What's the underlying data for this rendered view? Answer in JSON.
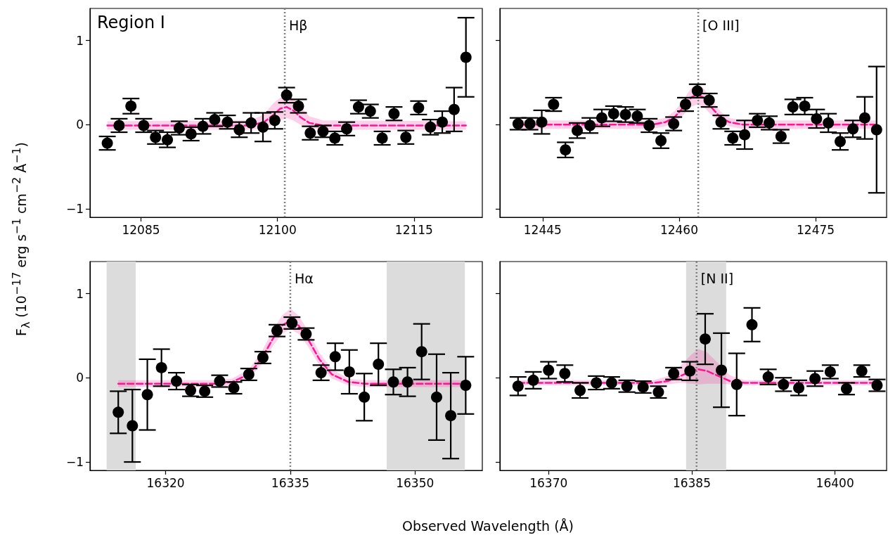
{
  "chart_data": [
    {
      "type": "scatter",
      "ylabel": "F$_{λ}$ (10$^{−17}$ erg s$^{−1}$ cm$^{−2}$ Å$^{−1}$)",
      "annotations": [
        "Region I"
      ],
      "xlim": [
        12079.4,
        12122.5
      ],
      "xticks": [
        12085,
        12100,
        12115
      ],
      "ylim": [
        -1.1,
        1.38
      ],
      "yticks": [
        {
          "value": -1,
          "label": "−1"
        },
        0,
        1
      ],
      "ref_lines": [
        {
          "axis": "x",
          "value": 12100.8,
          "label": "Hβ",
          "color": "#808080",
          "line_style": "dotted"
        }
      ],
      "series": [
        {
          "color": "#000000",
          "marker": "circle",
          "x": [
            12081.3,
            12082.6,
            12083.9,
            12085.3,
            12086.6,
            12087.9,
            12089.2,
            12090.5,
            12091.8,
            12093.1,
            12094.5,
            12095.8,
            12097.1,
            12098.4,
            12099.7,
            12101.0,
            12102.3,
            12103.6,
            12105.0,
            12106.3,
            12107.6,
            12108.9,
            12110.2,
            12111.5,
            12112.8,
            12114.1,
            12115.5,
            12116.8,
            12118.1,
            12119.4,
            12120.7
          ],
          "values": [
            -0.22,
            -0.01,
            0.22,
            -0.01,
            -0.15,
            -0.18,
            -0.04,
            -0.11,
            -0.02,
            0.06,
            0.03,
            -0.06,
            0.02,
            -0.03,
            0.05,
            0.35,
            0.22,
            -0.1,
            -0.08,
            -0.16,
            -0.05,
            0.21,
            0.16,
            -0.16,
            0.13,
            -0.15,
            0.2,
            -0.03,
            0.03,
            0.18,
            0.8
          ],
          "errors": [
            0.08,
            0.08,
            0.09,
            0.08,
            0.08,
            0.09,
            0.08,
            0.08,
            0.09,
            0.08,
            0.08,
            0.09,
            0.12,
            0.17,
            0.1,
            0.09,
            0.08,
            0.08,
            0.07,
            0.08,
            0.08,
            0.08,
            0.08,
            0.08,
            0.08,
            0.08,
            0.08,
            0.09,
            0.13,
            0.26,
            0.47
          ]
        },
        {
          "type": "line",
          "color": "#ff1493",
          "marker": "none",
          "line_style": "dashed",
          "x": [
            12081.3,
            12097,
            12098.5,
            12099.5,
            12100.3,
            12101,
            12101.7,
            12102.5,
            12103.5,
            12105,
            12120.7
          ],
          "values": [
            -0.01,
            -0.01,
            0.03,
            0.11,
            0.19,
            0.21,
            0.17,
            0.09,
            0.02,
            -0.01,
            -0.01
          ],
          "lower": [
            -0.06,
            -0.06,
            -0.04,
            0.0,
            0.05,
            0.08,
            0.05,
            0.0,
            -0.04,
            -0.06,
            -0.06
          ],
          "upper": [
            0.04,
            0.05,
            0.12,
            0.25,
            0.32,
            0.33,
            0.31,
            0.22,
            0.1,
            0.05,
            0.04
          ]
        }
      ]
    },
    {
      "type": "scatter",
      "tick_labels": "x",
      "xlim": [
        12440.3,
        12482.8
      ],
      "xticks": [
        12445,
        12460,
        12475
      ],
      "ylim": [
        -1.1,
        1.38
      ],
      "yticks": [
        -1,
        0,
        1
      ],
      "ref_lines": [
        {
          "axis": "x",
          "value": 12462.1,
          "label": "[O III]",
          "color": "#808080",
          "line_style": "dotted"
        }
      ],
      "series": [
        {
          "color": "#000000",
          "marker": "circle",
          "x": [
            12442.3,
            12443.6,
            12444.9,
            12446.2,
            12447.5,
            12448.8,
            12450.2,
            12451.5,
            12452.8,
            12454.1,
            12455.4,
            12456.7,
            12458.0,
            12459.4,
            12460.7,
            12462.0,
            12463.3,
            12464.6,
            12465.9,
            12467.2,
            12468.6,
            12469.9,
            12471.2,
            12472.5,
            12473.8,
            12475.1,
            12476.4,
            12477.7,
            12479.1,
            12480.4,
            12481.7
          ],
          "values": [
            0.01,
            0.01,
            0.03,
            0.24,
            -0.3,
            -0.07,
            -0.01,
            0.08,
            0.13,
            0.12,
            0.1,
            -0.01,
            -0.19,
            0.01,
            0.24,
            0.4,
            0.29,
            0.03,
            -0.16,
            -0.12,
            0.05,
            0.02,
            -0.14,
            0.21,
            0.22,
            0.07,
            0.02,
            -0.2,
            -0.05,
            0.08,
            -0.06
          ],
          "errors": [
            0.07,
            0.07,
            0.14,
            0.08,
            0.09,
            0.09,
            0.09,
            0.1,
            0.09,
            0.09,
            0.08,
            0.08,
            0.09,
            0.08,
            0.08,
            0.08,
            0.08,
            0.08,
            0.08,
            0.17,
            0.08,
            0.08,
            0.08,
            0.09,
            0.1,
            0.11,
            0.11,
            0.1,
            0.1,
            0.25,
            0.75
          ]
        },
        {
          "type": "line",
          "color": "#ff1493",
          "marker": "none",
          "line_style": "dashed",
          "x": [
            12442.3,
            12457,
            12458.5,
            12459.5,
            12460.5,
            12461.3,
            12462,
            12462.7,
            12463.5,
            12464.5,
            12465.5,
            12467,
            12481.7
          ],
          "values": [
            0,
            0,
            0.03,
            0.09,
            0.21,
            0.32,
            0.36,
            0.32,
            0.21,
            0.09,
            0.03,
            0,
            0
          ],
          "lower": [
            -0.05,
            -0.05,
            -0.02,
            0.03,
            0.12,
            0.21,
            0.24,
            0.21,
            0.12,
            0.03,
            -0.02,
            -0.05,
            -0.05
          ],
          "upper": [
            0.05,
            0.05,
            0.08,
            0.16,
            0.3,
            0.43,
            0.47,
            0.43,
            0.3,
            0.16,
            0.08,
            0.05,
            0.05
          ]
        }
      ]
    },
    {
      "type": "scatter",
      "xlabel": "Observed Wavelength (Å)",
      "xlim": [
        16310.9,
        16358.1
      ],
      "xticks": [
        16320,
        16335,
        16350
      ],
      "ylim": [
        -1.1,
        1.38
      ],
      "yticks": [
        {
          "value": -1,
          "label": "−1"
        },
        0,
        1
      ],
      "ref_lines": [
        {
          "axis": "x",
          "value": 16335.0,
          "label": "Hα",
          "color": "#808080",
          "line_style": "dotted"
        }
      ],
      "bands": [
        {
          "axis": "x",
          "from": 16312.9,
          "to": 16316.4,
          "color": "#dcdcdc"
        },
        {
          "axis": "x",
          "from": 16346.6,
          "to": 16356.0,
          "color": "#dcdcdc"
        }
      ],
      "series": [
        {
          "color": "#000000",
          "marker": "circle",
          "x": [
            16314.3,
            16316.0,
            16317.8,
            16319.5,
            16321.3,
            16323.0,
            16324.7,
            16326.5,
            16328.2,
            16330.0,
            16331.7,
            16333.4,
            16335.2,
            16336.9,
            16338.7,
            16340.4,
            16342.1,
            16343.9,
            16345.6,
            16347.4,
            16349.1,
            16350.8,
            16352.6,
            16354.3,
            16356.1
          ],
          "values": [
            -0.41,
            -0.57,
            -0.2,
            0.12,
            -0.04,
            -0.15,
            -0.16,
            -0.04,
            -0.12,
            0.04,
            0.24,
            0.56,
            0.65,
            0.52,
            0.06,
            0.25,
            0.07,
            -0.23,
            0.16,
            -0.05,
            -0.05,
            0.31,
            -0.23,
            -0.45,
            -0.09
          ],
          "errors": [
            0.25,
            0.43,
            0.42,
            0.22,
            0.1,
            0.07,
            0.07,
            0.07,
            0.07,
            0.07,
            0.07,
            0.07,
            0.07,
            0.07,
            0.09,
            0.16,
            0.26,
            0.28,
            0.25,
            0.15,
            0.17,
            0.33,
            0.51,
            0.51,
            0.34
          ]
        },
        {
          "type": "line",
          "color": "#ff1493",
          "marker": "none",
          "line_style": "dashed",
          "x": [
            16314.3,
            16326,
            16328,
            16330,
            16331.5,
            16333,
            16334,
            16335,
            16336,
            16337,
            16338.5,
            16340,
            16342,
            16344,
            16356.1
          ],
          "values": [
            -0.07,
            -0.07,
            -0.05,
            0.04,
            0.22,
            0.48,
            0.62,
            0.68,
            0.62,
            0.48,
            0.22,
            0.04,
            -0.05,
            -0.07,
            -0.07
          ],
          "lower": [
            -0.11,
            -0.11,
            -0.09,
            -0.01,
            0.15,
            0.39,
            0.52,
            0.58,
            0.52,
            0.39,
            0.15,
            -0.01,
            -0.09,
            -0.11,
            -0.11
          ],
          "upper": [
            -0.03,
            -0.03,
            -0.01,
            0.1,
            0.3,
            0.58,
            0.74,
            0.82,
            0.74,
            0.58,
            0.3,
            0.1,
            -0.01,
            -0.03,
            -0.03
          ]
        }
      ]
    },
    {
      "type": "scatter",
      "tick_labels": "x",
      "xlim": [
        16364.9,
        16405.4
      ],
      "xticks": [
        16370,
        16385,
        16400
      ],
      "ylim": [
        -1.1,
        1.38
      ],
      "yticks": [
        -1,
        0,
        1
      ],
      "ref_lines": [
        {
          "axis": "x",
          "value": 16385.5,
          "label": "[N II]",
          "color": "#808080",
          "line_style": "dotted"
        }
      ],
      "bands": [
        {
          "axis": "x",
          "from": 16384.4,
          "to": 16388.6,
          "color": "#dcdcdc"
        }
      ],
      "series": [
        {
          "color": "#000000",
          "marker": "circle",
          "x": [
            16366.8,
            16368.4,
            16370.0,
            16371.7,
            16373.3,
            16375.0,
            16376.6,
            16378.2,
            16379.9,
            16381.5,
            16383.1,
            16384.8,
            16386.4,
            16388.1,
            16389.7,
            16391.3,
            16393.0,
            16394.6,
            16396.2,
            16397.9,
            16399.5,
            16401.2,
            16402.8,
            16404.4
          ],
          "values": [
            -0.1,
            -0.03,
            0.09,
            0.05,
            -0.15,
            -0.06,
            -0.06,
            -0.1,
            -0.11,
            -0.17,
            0.05,
            0.08,
            0.46,
            0.09,
            -0.08,
            0.63,
            0.01,
            -0.08,
            -0.12,
            -0.01,
            0.07,
            -0.13,
            0.08,
            -0.09
          ],
          "errors": [
            0.11,
            0.1,
            0.1,
            0.1,
            0.09,
            0.08,
            0.07,
            0.07,
            0.07,
            0.07,
            0.07,
            0.11,
            0.3,
            0.44,
            0.37,
            0.2,
            0.09,
            0.08,
            0.09,
            0.09,
            0.08,
            0.07,
            0.07,
            0.07
          ]
        },
        {
          "type": "line",
          "color": "#ff1493",
          "marker": "none",
          "line_style": "dashed",
          "x": [
            16366.8,
            16381,
            16382.5,
            16383.8,
            16385,
            16385.7,
            16386.6,
            16387.8,
            16389,
            16390.5,
            16404.4
          ],
          "values": [
            -0.06,
            -0.06,
            -0.04,
            0.02,
            0.08,
            0.1,
            0.08,
            0.02,
            -0.04,
            -0.06,
            -0.06
          ],
          "lower": [
            -0.09,
            -0.09,
            -0.08,
            -0.06,
            -0.07,
            -0.08,
            -0.07,
            -0.07,
            -0.08,
            -0.09,
            -0.09
          ],
          "upper": [
            -0.03,
            -0.03,
            0.02,
            0.14,
            0.28,
            0.34,
            0.3,
            0.17,
            0.03,
            -0.03,
            -0.03
          ]
        }
      ]
    }
  ]
}
